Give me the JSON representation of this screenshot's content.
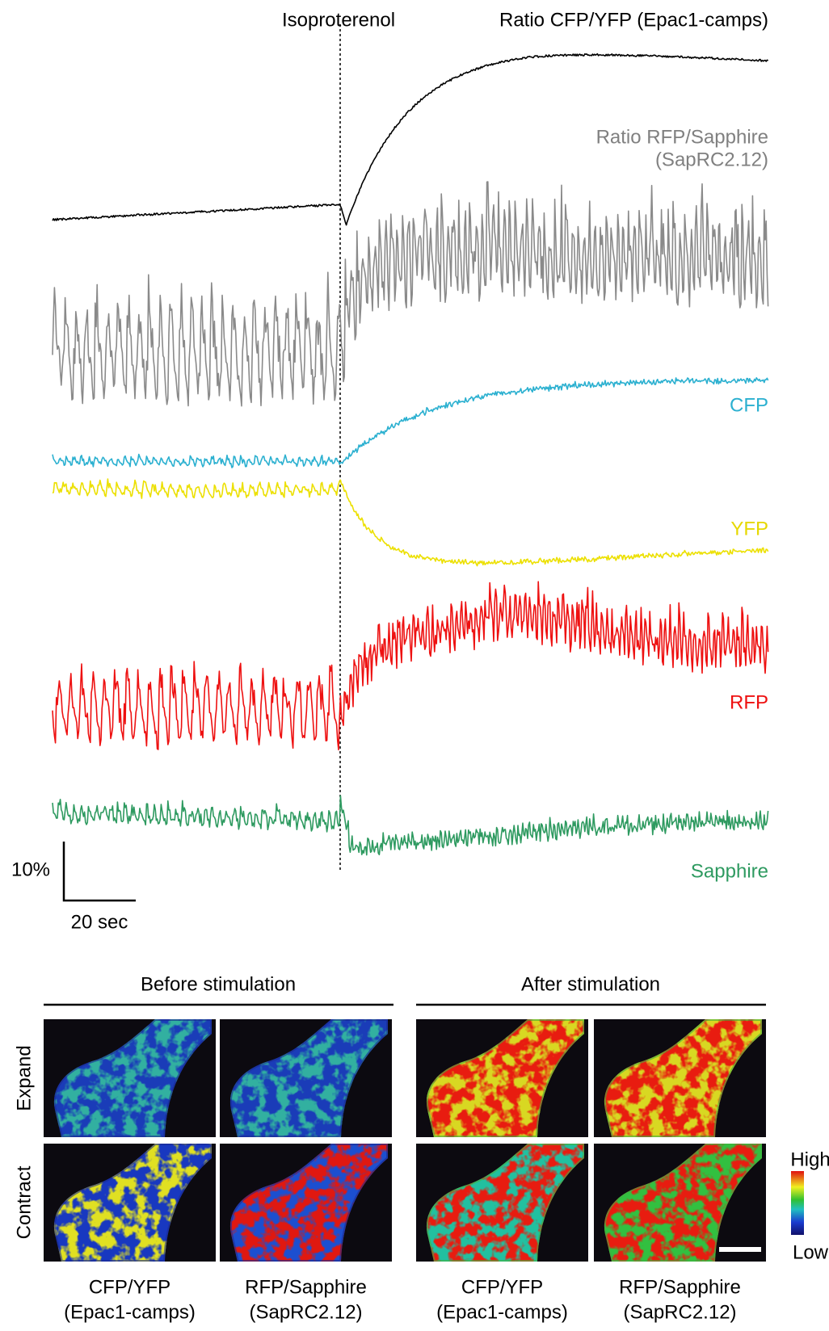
{
  "traces": {
    "marker": "Isoproterenol",
    "labels": {
      "cfp_yfp": "Ratio CFP/YFP (Epac1-camps)",
      "rfp_sapphire": [
        "Ratio RFP/Sapphire",
        "(SapRC2.12)"
      ],
      "cfp": "CFP",
      "yfp": "YFP",
      "rfp": "RFP",
      "sapphire": "Sapphire"
    },
    "scale_bar": {
      "y": "10%",
      "x": "20 sec"
    }
  },
  "images": {
    "groups": [
      "Before stimulation",
      "After stimulation"
    ],
    "rows": [
      "Expand",
      "Contract"
    ],
    "columns": [
      {
        "line1": "CFP/YFP",
        "line2": "(Epac1-camps)"
      },
      {
        "line1": "RFP/Sapphire",
        "line2": "(SapRC2.12)"
      },
      {
        "line1": "CFP/YFP",
        "line2": "(Epac1-camps)"
      },
      {
        "line1": "RFP/Sapphire",
        "line2": "(SapRC2.12)"
      }
    ],
    "colorbar": {
      "high": "High",
      "low": "Low"
    }
  }
}
